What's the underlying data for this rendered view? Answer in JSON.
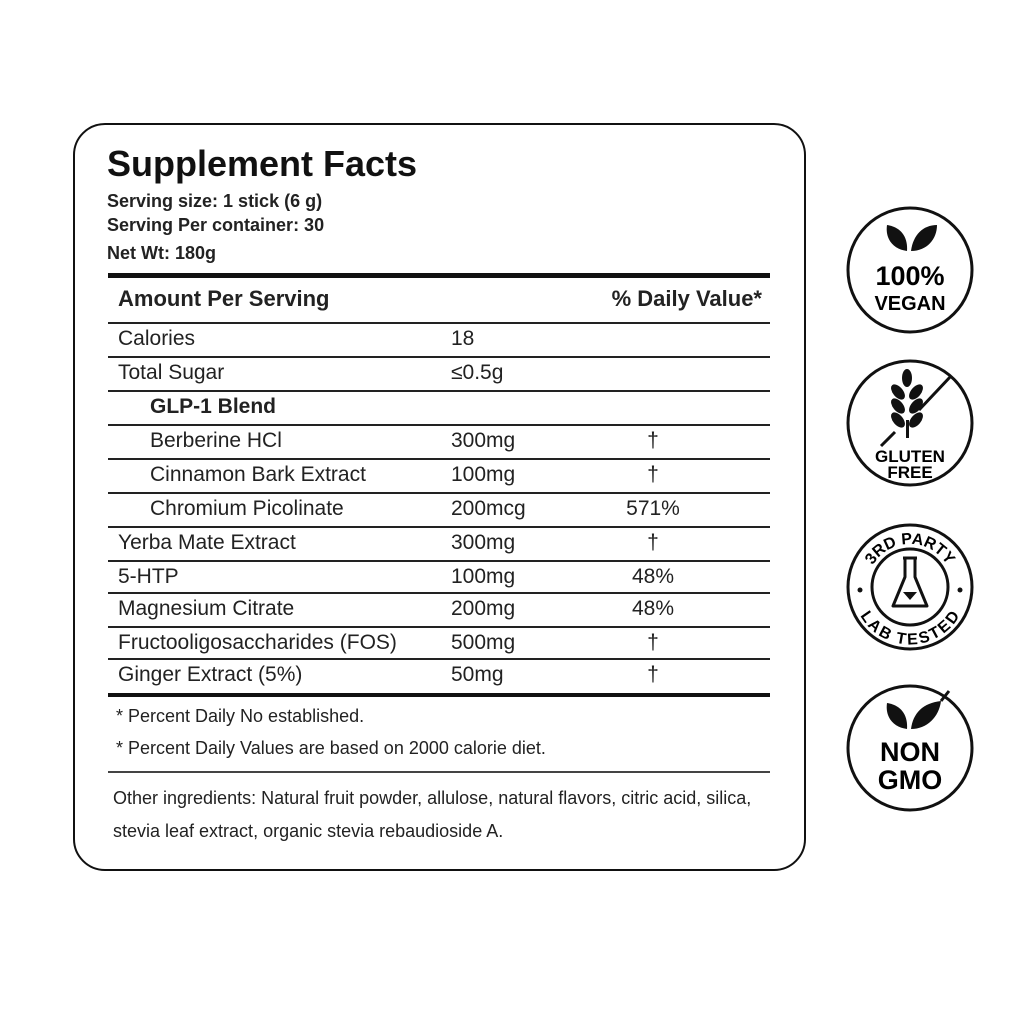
{
  "title": "Supplement Facts",
  "serving_size": "Serving size: 1 stick (6 g)",
  "servings_per_container": "Serving Per container: 30",
  "net_wt": "Net Wt: 180g",
  "header": {
    "amount": "Amount Per Serving",
    "dv": "% Daily Value*"
  },
  "rows": [
    {
      "name": "Calories",
      "amount": "18",
      "dv": ""
    },
    {
      "name": "Total Sugar",
      "amount": "≤0.5g",
      "dv": ""
    },
    {
      "name": "GLP-1 Blend",
      "amount": "",
      "dv": ""
    },
    {
      "name": "Berberine HCl",
      "amount": "300mg",
      "dv": "†"
    },
    {
      "name": "Cinnamon Bark Extract",
      "amount": "100mg",
      "dv": "†"
    },
    {
      "name": "Chromium Picolinate",
      "amount": "200mcg",
      "dv": "571%"
    },
    {
      "name": "Yerba Mate Extract",
      "amount": "300mg",
      "dv": "†"
    },
    {
      "name": "5-HTP",
      "amount": "100mg",
      "dv": "48%"
    },
    {
      "name": "Magnesium Citrate",
      "amount": "200mg",
      "dv": "48%"
    },
    {
      "name": "Fructooligosaccharides (FOS)",
      "amount": "500mg",
      "dv": "†"
    },
    {
      "name": "Ginger Extract (5%)",
      "amount": "50mg",
      "dv": "†"
    }
  ],
  "footnotes": [
    "* Percent Daily No established.",
    "* Percent Daily Values are based on 2000 calorie diet."
  ],
  "other_ingredients": "Other ingredients: Natural fruit powder, allulose, natural flavors, citric acid, silica, stevia leaf extract, organic stevia rebaudioside A.",
  "badges": [
    {
      "line1": "100%",
      "line2": "VEGAN",
      "icon": "leaf-icon"
    },
    {
      "line1": "GLUTEN",
      "line2": "FREE",
      "icon": "wheat-crossed-icon"
    },
    {
      "line1": "3RD PARTY",
      "line2": "LAB TESTED",
      "icon": "flask-icon"
    },
    {
      "line1": "NON",
      "line2": "GMO",
      "icon": "leaf-crossed-icon"
    }
  ]
}
